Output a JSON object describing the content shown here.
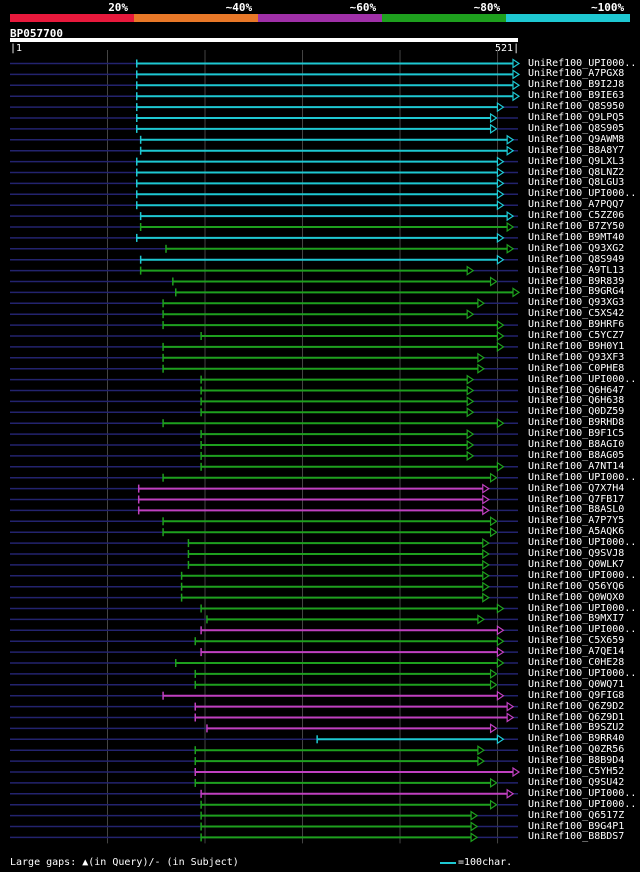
{
  "identity_legend": {
    "labels": [
      "20%",
      "~40%",
      "~60%",
      "~80%",
      "~100%"
    ],
    "colors": [
      "#e8193c",
      "#e87828",
      "#a030a8",
      "#1ea01e",
      "#1ec8d2"
    ]
  },
  "query": {
    "id": "BP057700",
    "start": "1",
    "end": "521",
    "length": 521
  },
  "gridlines": [
    100,
    200,
    300,
    400,
    500
  ],
  "hits": [
    {
      "id": "UniRef100_UPI000..",
      "start": 130,
      "end": 521,
      "color": "cyan"
    },
    {
      "id": "UniRef100_A7PGX8",
      "start": 130,
      "end": 521,
      "color": "cyan"
    },
    {
      "id": "UniRef100_B9I2J8",
      "start": 130,
      "end": 521,
      "color": "cyan"
    },
    {
      "id": "UniRef100_B9IE63",
      "start": 130,
      "end": 521,
      "color": "cyan"
    },
    {
      "id": "UniRef100_Q8S950",
      "start": 130,
      "end": 505,
      "color": "cyan"
    },
    {
      "id": "UniRef100_Q9LPQ5",
      "start": 130,
      "end": 498,
      "color": "cyan"
    },
    {
      "id": "UniRef100_Q8S905",
      "start": 130,
      "end": 498,
      "color": "cyan"
    },
    {
      "id": "UniRef100_Q9AWM8",
      "start": 134,
      "end": 515,
      "color": "cyan"
    },
    {
      "id": "UniRef100_B8A8Y7",
      "start": 134,
      "end": 515,
      "color": "cyan"
    },
    {
      "id": "UniRef100_Q9LXL3",
      "start": 130,
      "end": 505,
      "color": "cyan"
    },
    {
      "id": "UniRef100_Q8LNZ2",
      "start": 130,
      "end": 505,
      "color": "cyan"
    },
    {
      "id": "UniRef100_Q8LGU3",
      "start": 130,
      "end": 505,
      "color": "cyan"
    },
    {
      "id": "UniRef100_UPI000..",
      "start": 130,
      "end": 505,
      "color": "cyan"
    },
    {
      "id": "UniRef100_A7PQQ7",
      "start": 130,
      "end": 505,
      "color": "cyan"
    },
    {
      "id": "UniRef100_C5ZZ06",
      "start": 134,
      "end": 515,
      "color": "cyan"
    },
    {
      "id": "UniRef100_B7ZY50",
      "start": 134,
      "end": 515,
      "color": "green"
    },
    {
      "id": "UniRef100_B9MT40",
      "start": 130,
      "end": 505,
      "color": "cyan"
    },
    {
      "id": "UniRef100_Q93XG2",
      "start": 160,
      "end": 515,
      "color": "green"
    },
    {
      "id": "UniRef100_Q8S949",
      "start": 134,
      "end": 505,
      "color": "cyan"
    },
    {
      "id": "UniRef100_A9TL13",
      "start": 134,
      "end": 474,
      "color": "green"
    },
    {
      "id": "UniRef100_B9R839",
      "start": 167,
      "end": 498,
      "color": "green"
    },
    {
      "id": "UniRef100_B9GRG4",
      "start": 170,
      "end": 521,
      "color": "green"
    },
    {
      "id": "UniRef100_Q93XG3",
      "start": 157,
      "end": 485,
      "color": "green"
    },
    {
      "id": "UniRef100_C5XS42",
      "start": 157,
      "end": 474,
      "color": "green"
    },
    {
      "id": "UniRef100_B9HRF6",
      "start": 157,
      "end": 505,
      "color": "green"
    },
    {
      "id": "UniRef100_C5YCZ7",
      "start": 196,
      "end": 505,
      "color": "green"
    },
    {
      "id": "UniRef100_B9H0Y1",
      "start": 157,
      "end": 505,
      "color": "green"
    },
    {
      "id": "UniRef100_Q93XF3",
      "start": 157,
      "end": 485,
      "color": "green"
    },
    {
      "id": "UniRef100_C0PHE8",
      "start": 157,
      "end": 485,
      "color": "green"
    },
    {
      "id": "UniRef100_UPI000..",
      "start": 196,
      "end": 474,
      "color": "green"
    },
    {
      "id": "UniRef100_Q6H647",
      "start": 196,
      "end": 474,
      "color": "green"
    },
    {
      "id": "UniRef100_Q6H638",
      "start": 196,
      "end": 474,
      "color": "green"
    },
    {
      "id": "UniRef100_Q0DZ59",
      "start": 196,
      "end": 474,
      "color": "green"
    },
    {
      "id": "UniRef100_B9RHD8",
      "start": 157,
      "end": 505,
      "color": "green"
    },
    {
      "id": "UniRef100_B9F1C5",
      "start": 196,
      "end": 474,
      "color": "green"
    },
    {
      "id": "UniRef100_B8AGI0",
      "start": 196,
      "end": 474,
      "color": "green"
    },
    {
      "id": "UniRef100_B8AG05",
      "start": 196,
      "end": 474,
      "color": "green"
    },
    {
      "id": "UniRef100_A7NT14",
      "start": 196,
      "end": 505,
      "color": "green"
    },
    {
      "id": "UniRef100_UPI000..",
      "start": 157,
      "end": 498,
      "color": "green"
    },
    {
      "id": "UniRef100_Q7X7H4",
      "start": 132,
      "end": 490,
      "color": "magenta"
    },
    {
      "id": "UniRef100_Q7FB17",
      "start": 132,
      "end": 490,
      "color": "magenta"
    },
    {
      "id": "UniRef100_B8ASL0",
      "start": 132,
      "end": 490,
      "color": "magenta"
    },
    {
      "id": "UniRef100_A7P7Y5",
      "start": 157,
      "end": 498,
      "color": "green"
    },
    {
      "id": "UniRef100_A5AQK6",
      "start": 157,
      "end": 498,
      "color": "green"
    },
    {
      "id": "UniRef100_UPI000..",
      "start": 183,
      "end": 490,
      "color": "green"
    },
    {
      "id": "UniRef100_Q9SVJ8",
      "start": 183,
      "end": 490,
      "color": "green"
    },
    {
      "id": "UniRef100_Q0WLK7",
      "start": 183,
      "end": 490,
      "color": "green"
    },
    {
      "id": "UniRef100_UPI000..",
      "start": 176,
      "end": 490,
      "color": "green"
    },
    {
      "id": "UniRef100_Q56YQ6",
      "start": 176,
      "end": 490,
      "color": "green"
    },
    {
      "id": "UniRef100_Q0WQX0",
      "start": 176,
      "end": 490,
      "color": "green"
    },
    {
      "id": "UniRef100_UPI000..",
      "start": 196,
      "end": 505,
      "color": "green"
    },
    {
      "id": "UniRef100_B9MXI7",
      "start": 202,
      "end": 485,
      "color": "green"
    },
    {
      "id": "UniRef100_UPI000..",
      "start": 196,
      "end": 505,
      "color": "magenta"
    },
    {
      "id": "UniRef100_C5X659",
      "start": 190,
      "end": 505,
      "color": "green"
    },
    {
      "id": "UniRef100_A7QE14",
      "start": 196,
      "end": 505,
      "color": "magenta"
    },
    {
      "id": "UniRef100_C0HE28",
      "start": 170,
      "end": 505,
      "color": "green"
    },
    {
      "id": "UniRef100_UPI000..",
      "start": 190,
      "end": 498,
      "color": "green"
    },
    {
      "id": "UniRef100_Q0WQ71",
      "start": 190,
      "end": 498,
      "color": "green"
    },
    {
      "id": "UniRef100_Q9FIG8",
      "start": 157,
      "end": 505,
      "color": "magenta"
    },
    {
      "id": "UniRef100_Q6Z9D2",
      "start": 190,
      "end": 515,
      "color": "magenta"
    },
    {
      "id": "UniRef100_Q6Z9D1",
      "start": 190,
      "end": 515,
      "color": "magenta"
    },
    {
      "id": "UniRef100_B9SZU2",
      "start": 202,
      "end": 498,
      "color": "magenta"
    },
    {
      "id": "UniRef100_B9RR40",
      "start": 315,
      "end": 505,
      "color": "cyan"
    },
    {
      "id": "UniRef100_Q0ZR56",
      "start": 190,
      "end": 485,
      "color": "green"
    },
    {
      "id": "UniRef100_B8B9D4",
      "start": 190,
      "end": 485,
      "color": "green"
    },
    {
      "id": "UniRef100_C5YH52",
      "start": 190,
      "end": 521,
      "color": "magenta"
    },
    {
      "id": "UniRef100_Q9SU42",
      "start": 190,
      "end": 498,
      "color": "green"
    },
    {
      "id": "UniRef100_UPI000..",
      "start": 196,
      "end": 515,
      "color": "magenta"
    },
    {
      "id": "UniRef100_UPI000..",
      "start": 196,
      "end": 498,
      "color": "green"
    },
    {
      "id": "UniRef100_Q6517Z",
      "start": 196,
      "end": 478,
      "color": "green"
    },
    {
      "id": "UniRef100_B9G4P1",
      "start": 196,
      "end": 478,
      "color": "green"
    },
    {
      "id": "UniRef100_B8BDS7",
      "start": 196,
      "end": 478,
      "color": "green"
    }
  ],
  "footer": {
    "gaps_text": "Large gaps: ▲(in Query)/- (in Subject)",
    "scale_text": "=100char."
  }
}
